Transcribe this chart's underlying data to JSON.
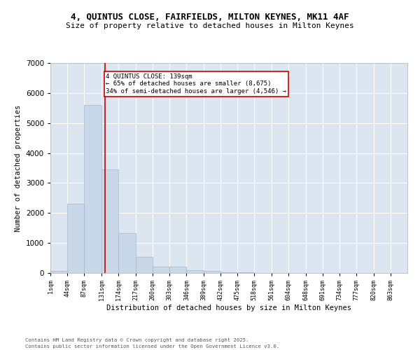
{
  "title_line1": "4, QUINTUS CLOSE, FAIRFIELDS, MILTON KEYNES, MK11 4AF",
  "title_line2": "Size of property relative to detached houses in Milton Keynes",
  "xlabel": "Distribution of detached houses by size in Milton Keynes",
  "ylabel": "Number of detached properties",
  "footnote_line1": "Contains HM Land Registry data © Crown copyright and database right 2025.",
  "footnote_line2": "Contains public sector information licensed under the Open Government Licence v3.0.",
  "annotation_line1": "4 QUINTUS CLOSE: 139sqm",
  "annotation_line2": "← 65% of detached houses are smaller (8,675)",
  "annotation_line3": "34% of semi-detached houses are larger (4,546) →",
  "property_size": 139,
  "bar_edges": [
    1,
    44,
    87,
    131,
    174,
    217,
    260,
    303,
    346,
    389,
    432,
    475,
    518,
    561,
    604,
    648,
    691,
    734,
    777,
    820,
    863
  ],
  "bar_heights": [
    80,
    2300,
    5600,
    3450,
    1330,
    530,
    220,
    210,
    100,
    60,
    30,
    15,
    8,
    5,
    3,
    2,
    1,
    1,
    1,
    0
  ],
  "bar_color": "#c8d8e8",
  "bar_edge_color": "#a0b8cc",
  "vline_color": "#cc0000",
  "vline_x": 139,
  "annotation_box_color": "#cc0000",
  "background_color": "#dce6f0",
  "ylim": [
    0,
    7000
  ],
  "yticks": [
    0,
    1000,
    2000,
    3000,
    4000,
    5000,
    6000,
    7000
  ],
  "tick_labels": [
    "1sqm",
    "44sqm",
    "87sqm",
    "131sqm",
    "174sqm",
    "217sqm",
    "260sqm",
    "303sqm",
    "346sqm",
    "389sqm",
    "432sqm",
    "475sqm",
    "518sqm",
    "561sqm",
    "604sqm",
    "648sqm",
    "691sqm",
    "734sqm",
    "777sqm",
    "820sqm",
    "863sqm"
  ]
}
